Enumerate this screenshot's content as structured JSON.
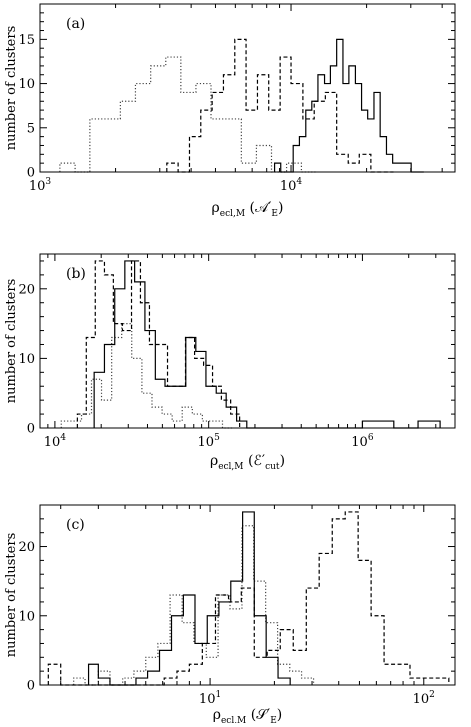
{
  "figure": {
    "ylabel": "number of clusters",
    "panels": [
      {
        "label": "(a)",
        "xlabel_main": "ρ",
        "xlabel_sub": "ecl,M",
        "xlabel_arg": "(𝒜′",
        "xlabel_arg_sub": "E",
        "xlabel_close": ")"
      },
      {
        "label": "(b)",
        "xlabel_main": "ρ",
        "xlabel_sub": "ecl,M",
        "xlabel_arg": "(ℰ′",
        "xlabel_arg_sub": "cut",
        "xlabel_close": ")"
      },
      {
        "label": "(c)",
        "xlabel_main": "ρ",
        "xlabel_sub": "ecl,M",
        "xlabel_arg": "(𝒮′",
        "xlabel_arg_sub": "E",
        "xlabel_close": ")"
      }
    ]
  },
  "chart_data": [
    {
      "type": "histogram",
      "panel": "(a)",
      "xlabel": "ρecl,M (𝒜′E)",
      "ylabel": "number of clusters",
      "xscale": "log",
      "xlim": [
        1000,
        45000
      ],
      "ylim": [
        0,
        19
      ],
      "xticks": [
        {
          "value": 1000,
          "base": "10",
          "exp": "3"
        },
        {
          "value": 10000,
          "base": "10",
          "exp": "4"
        }
      ],
      "yticks": [
        0,
        5,
        10,
        15
      ],
      "series": [
        {
          "style": "dotted",
          "edges": [
            1200,
            1380,
            1580,
            1820,
            2090,
            2400,
            2760,
            3170,
            3640,
            4180,
            4800,
            5520,
            6340,
            7280,
            8360,
            9600,
            11000,
            12700
          ],
          "counts": [
            1,
            0,
            6,
            6,
            8,
            10,
            12,
            13,
            9,
            10,
            6,
            6,
            1,
            3,
            0,
            1,
            0
          ]
        },
        {
          "style": "dashed",
          "edges": [
            3200,
            3550,
            3940,
            4370,
            4850,
            5380,
            5970,
            6620,
            7350,
            8150,
            9050,
            10000,
            11150,
            12370,
            13700,
            15200,
            16900,
            18700,
            20800,
            23000,
            25600
          ],
          "counts": [
            1,
            0,
            4,
            7,
            9,
            11,
            15,
            7,
            11,
            7,
            13,
            10,
            6,
            8,
            9,
            2,
            1,
            2,
            0,
            0
          ]
        },
        {
          "style": "solid",
          "edges": [
            8600,
            9100,
            9650,
            10200,
            10800,
            11450,
            12100,
            12800,
            13600,
            14350,
            15200,
            16100,
            17000,
            18050,
            19100,
            20200,
            21400,
            22650,
            24000,
            25400,
            26900,
            28400,
            30100,
            31900,
            33800
          ],
          "counts": [
            1,
            0,
            0,
            3,
            4,
            7,
            8,
            11,
            10,
            12,
            15,
            10,
            12,
            10,
            7,
            6,
            9,
            4,
            2,
            1,
            1,
            1,
            0,
            0
          ]
        }
      ]
    },
    {
      "type": "histogram",
      "panel": "(b)",
      "xlabel": "ρecl,M (ℰ′cut)",
      "ylabel": "number of clusters",
      "xscale": "log",
      "xlim": [
        8000,
        4000000
      ],
      "ylim": [
        0,
        25
      ],
      "xticks": [
        {
          "value": 10000,
          "base": "10",
          "exp": "4"
        },
        {
          "value": 100000,
          "base": "10",
          "exp": "5"
        },
        {
          "value": 1000000,
          "base": "10",
          "exp": "6"
        }
      ],
      "yticks": [
        0,
        10,
        20
      ],
      "series": [
        {
          "style": "dotted",
          "edges": [
            11000,
            12800,
            14900,
            17300,
            20100,
            23400,
            27200,
            31600,
            36800,
            42800,
            49800,
            57900,
            67300,
            78300,
            91000,
            106000,
            123000,
            143000
          ],
          "counts": [
            1,
            1,
            2,
            7,
            4,
            13,
            15,
            10,
            5,
            3,
            2,
            1,
            3,
            2,
            1,
            1,
            0
          ]
        },
        {
          "style": "dashed",
          "edges": [
            14000,
            16000,
            18300,
            21000,
            24000,
            27500,
            31500,
            36000,
            41200,
            47200,
            54000,
            61800,
            70700,
            81000,
            92700,
            106000,
            121000,
            139000,
            159000
          ],
          "counts": [
            2,
            13,
            24,
            22,
            15,
            14,
            24,
            18,
            12,
            12,
            6,
            6,
            13,
            10,
            9,
            6,
            4,
            2
          ]
        },
        {
          "style": "solid",
          "edges": [
            18000,
            21000,
            24500,
            28500,
            33000,
            38500,
            45000,
            52000,
            61000,
            71000,
            82500,
            96000,
            112000,
            130000,
            152000,
            177000,
            1000000,
            1600000,
            2300000,
            3200000
          ],
          "counts": [
            8,
            12,
            20,
            24,
            21,
            14,
            7,
            6,
            6,
            13,
            11,
            6,
            5,
            3,
            1,
            0,
            1,
            0,
            1
          ]
        }
      ]
    },
    {
      "type": "histogram",
      "panel": "(c)",
      "xlabel": "ρecl,M (𝒮′E)",
      "ylabel": "number of clusters",
      "xscale": "log",
      "xlim": [
        1.6,
        140
      ],
      "ylim": [
        0,
        26
      ],
      "xticks": [
        {
          "value": 10,
          "base": "10",
          "exp": "1"
        },
        {
          "value": 100,
          "base": "10",
          "exp": "2"
        }
      ],
      "yticks": [
        0,
        10,
        20
      ],
      "series": [
        {
          "style": "dotted",
          "edges": [
            2.3,
            2.6,
            3.0,
            3.4,
            3.9,
            4.4,
            5.0,
            5.7,
            6.5,
            7.4,
            8.4,
            9.6,
            10.9,
            12.4,
            14.1,
            16.0,
            18.2,
            20.7,
            23.6,
            26.8,
            30.5
          ],
          "counts": [
            1,
            0,
            2,
            0,
            1,
            2,
            4,
            6,
            13,
            9,
            6,
            4,
            13,
            11,
            23,
            15,
            9,
            3,
            2,
            1
          ]
        },
        {
          "style": "dashed",
          "edges": [
            1.75,
            2.0,
            2.3,
            2.6,
            3.0,
            3.5,
            4.0,
            4.6,
            5.3,
            6.1,
            7.0,
            8.0,
            9.2,
            10.6,
            12.2,
            14.0,
            16.1,
            18.5,
            21.3,
            24.5,
            28.2,
            32.4,
            37.3,
            42.9,
            49.3,
            56.7,
            65.2,
            75.0,
            86.2,
            99.1,
            114.0,
            131.0
          ],
          "counts": [
            3,
            0,
            0,
            0,
            0,
            0,
            0,
            0,
            0,
            1,
            2,
            3,
            6,
            13,
            12,
            14,
            4,
            5,
            8,
            5,
            14,
            19,
            24,
            25,
            18,
            10,
            3,
            3,
            1,
            1,
            1
          ]
        },
        {
          "style": "solid",
          "edges": [
            2.7,
            3.0,
            3.4,
            3.9,
            4.5,
            5.1,
            5.8,
            6.6,
            7.5,
            8.5,
            9.7,
            11.0,
            12.5,
            14.2,
            16.1,
            18.3,
            20.8,
            23.7
          ],
          "counts": [
            3,
            1,
            0,
            0,
            1,
            2,
            5,
            10,
            13,
            6,
            10,
            12,
            15,
            25,
            10,
            4,
            1
          ]
        }
      ]
    }
  ]
}
